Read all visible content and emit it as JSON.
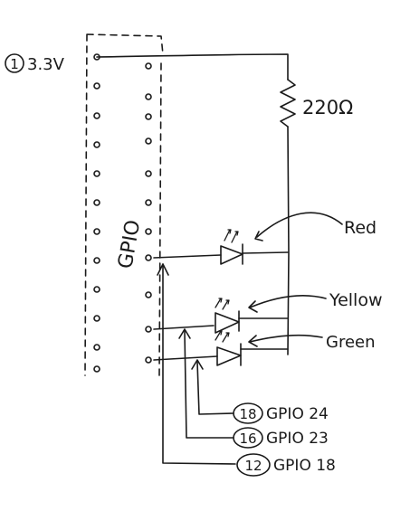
{
  "power": {
    "pin_number": "1",
    "label": "3.3V"
  },
  "resistor": {
    "label": "220Ω"
  },
  "header": {
    "label": "GPIO"
  },
  "leds": {
    "red": "Red",
    "yellow": "Yellow",
    "green": "Green"
  },
  "gpio_labels": [
    {
      "pin_number": "18",
      "name": "GPIO 24"
    },
    {
      "pin_number": "16",
      "name": "GPIO 23"
    },
    {
      "pin_number": "12",
      "name": "GPIO 18"
    }
  ],
  "colors": {
    "ink": "#1a1a1a",
    "paper": "#ffffff"
  }
}
